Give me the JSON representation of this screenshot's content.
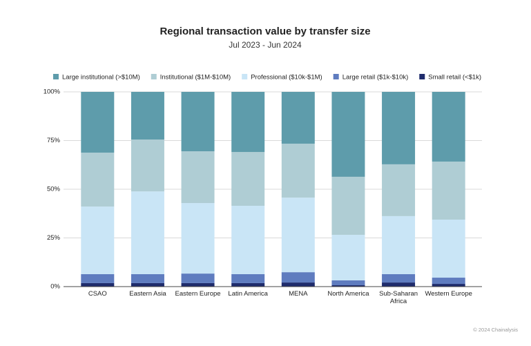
{
  "chart_data": {
    "type": "stacked_bar",
    "title": "Regional transaction value by transfer size",
    "subtitle": "Jul 2023 - Jun 2024",
    "source": "© 2024 Chainalysis",
    "categories": [
      "CSAO",
      "Eastern Asia",
      "Eastern Europe",
      "Latin America",
      "MENA",
      "North America",
      "Sub-Saharan Africa",
      "Western Europe"
    ],
    "series": [
      {
        "name": "Large institutional (>$10M)",
        "color": "#5e9cab",
        "values": [
          31.2,
          24.5,
          30.5,
          30.9,
          26.6,
          43.6,
          37.2,
          35.8
        ]
      },
      {
        "name": "Institutional ($1M-$10M)",
        "color": "#afcdd4",
        "values": [
          27.7,
          26.6,
          26.6,
          27.6,
          27.7,
          29.8,
          26.6,
          29.8
        ]
      },
      {
        "name": "Professional ($10k-$1M)",
        "color": "#c9e5f6",
        "values": [
          34.7,
          42.5,
          36.2,
          35.1,
          38.3,
          23.4,
          29.8,
          29.8
        ]
      },
      {
        "name": "Large retail ($1k-$10k)",
        "color": "#5f7cbf",
        "values": [
          4.6,
          4.6,
          4.9,
          4.6,
          5.3,
          2.5,
          4.3,
          3.2
        ]
      },
      {
        "name": "Small retail (<$1k)",
        "color": "#1f2c6c",
        "values": [
          1.8,
          1.8,
          1.8,
          1.8,
          2.1,
          0.7,
          2.1,
          1.4
        ]
      }
    ],
    "ylim": [
      0,
      100
    ],
    "yticks": [
      {
        "value": 0,
        "label": "0%"
      },
      {
        "value": 25,
        "label": "25%"
      },
      {
        "value": 50,
        "label": "50%"
      },
      {
        "value": 75,
        "label": "75%"
      },
      {
        "value": 100,
        "label": "100%"
      }
    ],
    "grid": true
  }
}
